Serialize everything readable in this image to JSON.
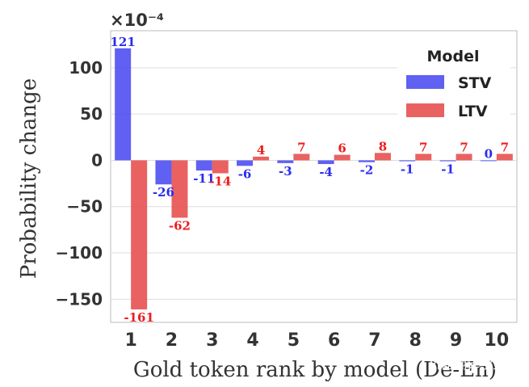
{
  "chart_data": {
    "type": "bar",
    "categories": [
      "1",
      "2",
      "3",
      "4",
      "5",
      "6",
      "7",
      "8",
      "9",
      "10"
    ],
    "series": [
      {
        "name": "STV",
        "values": [
          121,
          -26,
          -11,
          -6,
          -3,
          -4,
          -2,
          -1,
          -1,
          0
        ],
        "color": "#4f4ff2"
      },
      {
        "name": "LTV",
        "values": [
          -161,
          -62,
          -14,
          4,
          7,
          6,
          8,
          7,
          7,
          7
        ],
        "color": "#e85050"
      }
    ],
    "xlabel": "Gold token rank by model (De-En)",
    "ylabel": "Probability change",
    "scale_label": "×10⁻⁴",
    "ylim": [
      -175,
      140
    ],
    "yticks": [
      100,
      50,
      0,
      -50,
      -100,
      -150
    ],
    "ytick_labels": [
      "100",
      "50",
      "0",
      "−50",
      "−100",
      "−150"
    ],
    "legend": {
      "title": "Model",
      "position": "top-right"
    },
    "grid": true
  },
  "watermark": "机器翻译学堂"
}
